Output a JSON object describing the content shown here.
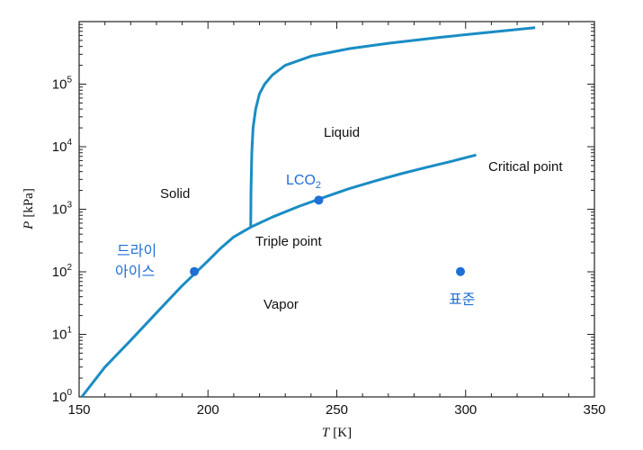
{
  "chart_data": {
    "type": "line",
    "title": "",
    "xlabel": {
      "var": "T",
      "unit": "[K]"
    },
    "ylabel": {
      "var": "P",
      "unit": "[kPa]"
    },
    "xlim": [
      150,
      350
    ],
    "ylim": [
      1,
      1000000
    ],
    "yscale": "log",
    "grid": false,
    "x_ticks": [
      "150",
      "200",
      "250",
      "300",
      "350"
    ],
    "y_ticks": [
      {
        "base": "10",
        "exp": "0",
        "value": 1
      },
      {
        "base": "10",
        "exp": "1",
        "value": 10
      },
      {
        "base": "10",
        "exp": "2",
        "value": 100
      },
      {
        "base": "10",
        "exp": "3",
        "value": 1000
      },
      {
        "base": "10",
        "exp": "4",
        "value": 10000
      },
      {
        "base": "10",
        "exp": "5",
        "value": 100000
      }
    ],
    "line_color": "#1a8cc4",
    "point_color": "#1f6fd6",
    "series": [
      {
        "x": [
          151,
          160,
          170,
          180,
          190,
          200,
          205,
          210,
          216.6
        ],
        "y": [
          1,
          3,
          8,
          22,
          60,
          150,
          240,
          360,
          518
        ]
      },
      {
        "x": [
          216.6,
          225,
          235,
          245,
          255,
          265,
          275,
          285,
          295,
          304.1
        ],
        "y": [
          518,
          750,
          1100,
          1550,
          2150,
          2850,
          3700,
          4700,
          5900,
          7380
        ]
      },
      {
        "x": [
          216.6,
          216.7,
          217,
          217.5,
          218.5,
          220,
          222,
          225,
          230,
          240,
          255,
          270,
          290,
          310,
          327
        ],
        "y": [
          518,
          2000,
          8000,
          20000,
          40000,
          70000,
          100000,
          140000,
          200000,
          280000,
          370000,
          450000,
          560000,
          680000,
          800000
        ]
      }
    ],
    "points": [
      {
        "x": 194.7,
        "y": 101
      },
      {
        "x": 243,
        "y": 1400
      },
      {
        "x": 298,
        "y": 101
      }
    ],
    "annotations": {
      "solid": "Solid",
      "liquid": "Liquid",
      "vapor": "Vapor",
      "triple_point": "Triple point",
      "critical_point": "Critical point",
      "lco2_main": "LCO",
      "lco2_sub": "2",
      "dry_ice_line1": "드라이",
      "dry_ice_line2": "아이스",
      "standard": "표준"
    }
  }
}
